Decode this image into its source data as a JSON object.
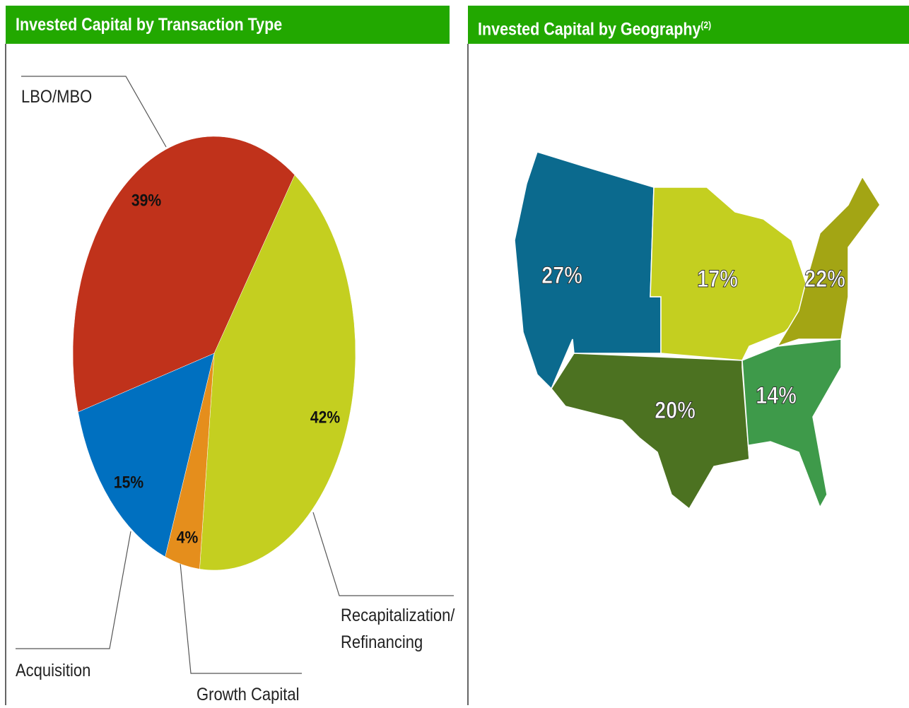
{
  "chart_data": [
    {
      "type": "pie",
      "title": "Invested Capital by Transaction Type",
      "categories": [
        "Recapitalization/\nRefinancing",
        "Growth Capital",
        "Acquisition",
        "LBO/MBO"
      ],
      "values": [
        42,
        4,
        15,
        39
      ],
      "value_labels": [
        "42%",
        "4%",
        "15%",
        "39%"
      ],
      "colors": [
        "#c4cf20",
        "#e58e1c",
        "#0070c0",
        "#c0321b"
      ]
    },
    {
      "type": "map",
      "title": "Invested Capital by Geography",
      "title_superscript": "(2)",
      "values": [
        27,
        17,
        22,
        20,
        14
      ],
      "value_labels": [
        "27%",
        "17%",
        "22%",
        "20%",
        "14%"
      ],
      "colors": [
        "#0b6a8e",
        "#c4cf20",
        "#a3a514",
        "#4c7221",
        "#3e9a4a"
      ]
    }
  ]
}
